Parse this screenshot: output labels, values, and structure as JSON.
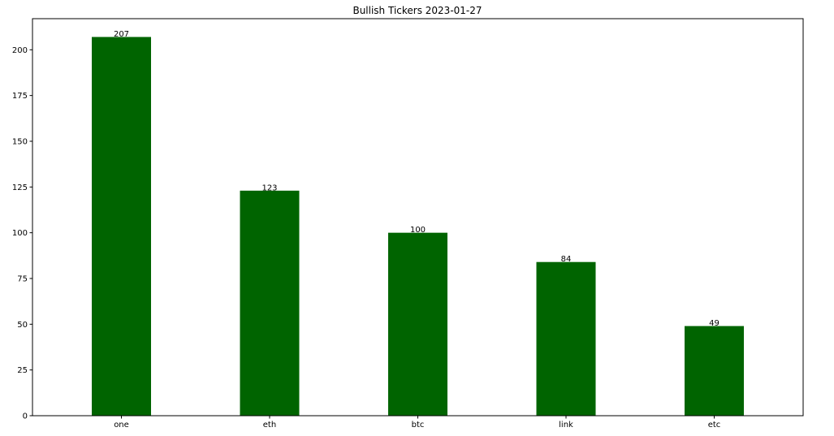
{
  "chart_data": {
    "type": "bar",
    "title": "Bullish Tickers 2023-01-27",
    "categories": [
      "one",
      "eth",
      "btc",
      "link",
      "etc"
    ],
    "values": [
      207,
      123,
      100,
      84,
      49
    ],
    "data_labels": [
      "207",
      "123",
      "100",
      "84",
      "49"
    ],
    "xlabel": "",
    "ylabel": "",
    "ylim": [
      0,
      217
    ],
    "yticks": [
      0,
      25,
      50,
      75,
      100,
      125,
      150,
      175,
      200
    ],
    "ytick_labels": [
      "0",
      "25",
      "50",
      "75",
      "100",
      "125",
      "150",
      "175",
      "200"
    ],
    "bar_color": "#006400",
    "grid": false,
    "legend": "none"
  }
}
